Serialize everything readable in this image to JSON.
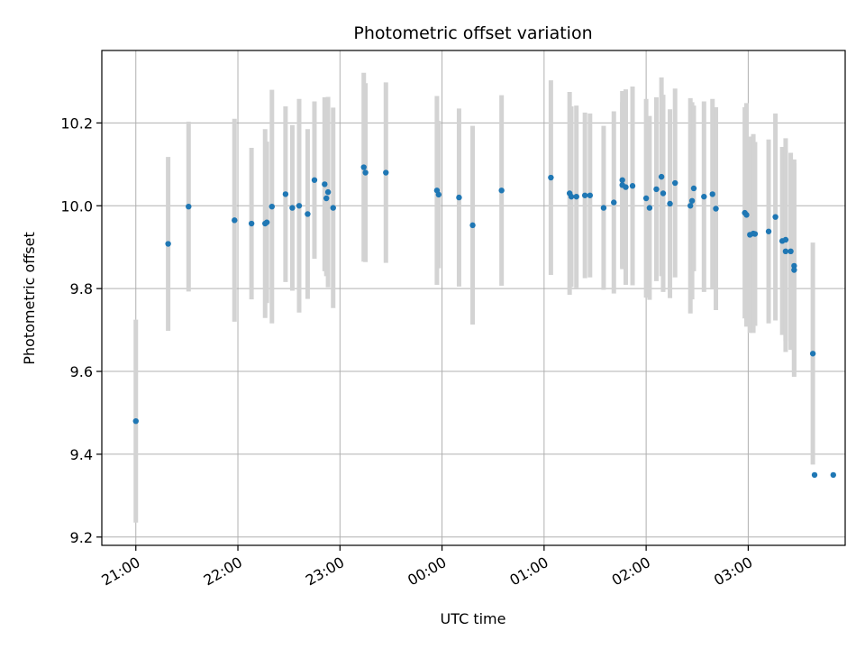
{
  "chart_data": {
    "type": "scatter",
    "title": "Photometric offset variation",
    "xlabel": "UTC time",
    "ylabel": "Photometric offset",
    "x_tick_labels": [
      "21:00",
      "22:00",
      "23:00",
      "00:00",
      "01:00",
      "02:00",
      "03:00"
    ],
    "y_tick_labels": [
      "9.2",
      "9.4",
      "9.6",
      "9.8",
      "10.0",
      "10.2"
    ],
    "y_ticks": [
      9.2,
      9.4,
      9.6,
      9.8,
      10.0,
      10.2
    ],
    "xlim": [
      "20:40",
      "03:57"
    ],
    "ylim": [
      9.18,
      10.375
    ],
    "grid": true,
    "colors": {
      "points": "#1f77b4",
      "error_bars": "#d3d3d3"
    },
    "series": [
      {
        "x": [
          "21:00",
          "21:19",
          "21:31",
          "21:58",
          "22:08",
          "22:16",
          "22:17",
          "22:20",
          "22:28",
          "22:32",
          "22:36",
          "22:41",
          "22:45",
          "22:51",
          "22:52",
          "22:53",
          "22:56",
          "23:14",
          "23:15",
          "23:27",
          "23:57",
          "23:58",
          "00:10",
          "00:18",
          "00:35",
          "01:04",
          "01:15",
          "01:16",
          "01:19",
          "01:24",
          "01:27",
          "01:35",
          "01:41",
          "01:46",
          "01:46",
          "01:48",
          "01:52",
          "02:00",
          "02:02",
          "02:06",
          "02:09",
          "02:10",
          "02:14",
          "02:17",
          "02:26",
          "02:27",
          "02:28",
          "02:34",
          "02:39",
          "02:41",
          "02:58",
          "02:59",
          "03:01",
          "03:03",
          "03:04",
          "03:12",
          "03:16",
          "03:20",
          "03:22",
          "03:22",
          "03:25",
          "03:27",
          "03:27",
          "03:38",
          "03:39",
          "03:50"
        ],
        "y": [
          9.48,
          9.908,
          9.998,
          9.965,
          9.957,
          9.957,
          9.96,
          9.998,
          10.028,
          9.995,
          10.0,
          9.98,
          10.062,
          10.052,
          10.018,
          10.033,
          9.995,
          10.093,
          10.08,
          10.08,
          10.037,
          10.027,
          10.02,
          9.953,
          10.037,
          10.068,
          10.03,
          10.022,
          10.022,
          10.025,
          10.025,
          9.995,
          10.008,
          10.062,
          10.05,
          10.045,
          10.048,
          10.018,
          9.995,
          10.04,
          10.07,
          10.03,
          10.005,
          10.055,
          10.0,
          10.012,
          10.042,
          10.022,
          10.028,
          9.993,
          9.983,
          9.978,
          9.93,
          9.933,
          9.932,
          9.938,
          9.973,
          9.915,
          9.89,
          9.918,
          9.89,
          9.855,
          9.845,
          9.643,
          9.35,
          9.35
        ],
        "error": [
          0.245,
          0.21,
          0.205,
          0.245,
          0.183,
          0.228,
          0.195,
          0.282,
          0.212,
          0.2,
          0.258,
          0.205,
          0.19,
          0.21,
          0.188,
          0.23,
          0.242,
          0.228,
          0.216,
          0.218,
          0.228,
          0.178,
          0.215,
          0.24,
          0.23,
          0.235,
          0.245,
          0.218,
          0.22,
          0.2,
          0.198,
          0.198,
          0.22,
          0.215,
          0.2,
          0.236,
          0.24,
          0.24,
          0.222,
          0.222,
          0.24,
          0.238,
          0.228,
          0.228,
          0.26,
          0.238,
          0.2,
          0.23,
          0.23,
          0.245,
          0.255,
          0.27,
          0.237,
          0.24,
          0.222,
          0.222,
          0.25,
          0.227,
          0.243,
          0.245,
          0.238,
          0.257,
          0.258,
          0.268,
          0.0,
          0.0
        ]
      }
    ]
  }
}
